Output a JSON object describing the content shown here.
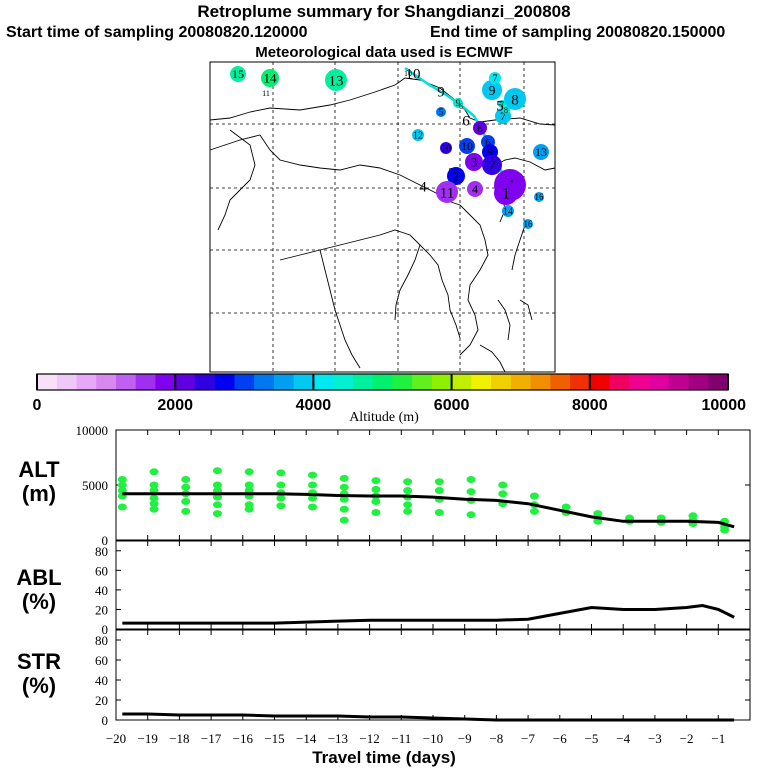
{
  "header": {
    "title": "Retroplume summary for Shangdianzi_200808",
    "start": "Start time of sampling 20080820.120000",
    "end": "End time of sampling 20080820.150000",
    "met": "Meteorological data used is ECMWF"
  },
  "colorbar": {
    "ticks": [
      "0",
      "2000",
      "4000",
      "6000",
      "8000",
      "10000"
    ],
    "label": "Altitude (m)",
    "colors": [
      "#f8e0f8",
      "#f0c8f8",
      "#e8a8f8",
      "#d888f0",
      "#c060f0",
      "#a030f0",
      "#8000f0",
      "#6000e0",
      "#3000e0",
      "#0000f0",
      "#0040f0",
      "#0078f0",
      "#00a0f0",
      "#00c8f0",
      "#00e8f0",
      "#00f0d0",
      "#00f0a0",
      "#00f070",
      "#20f040",
      "#60f020",
      "#90f000",
      "#c0f000",
      "#f0f000",
      "#f0d000",
      "#f0b000",
      "#f09000",
      "#f06000",
      "#f03000",
      "#f00000",
      "#f00060",
      "#f00090",
      "#e000a0",
      "#c00090",
      "#a00080",
      "#800070"
    ]
  },
  "map": {
    "markers": [
      {
        "label": "15",
        "kind": "circle",
        "color": "#00f0a0"
      },
      {
        "label": "14",
        "kind": "circle",
        "color": "#00f070"
      },
      {
        "label": "13",
        "kind": "circle",
        "color": "#00f0a0"
      },
      {
        "label": "11",
        "kind": "circle",
        "color": "#00f070"
      },
      {
        "label": "10",
        "kind": "text",
        "color": "#000000"
      },
      {
        "label": "10",
        "kind": "circle",
        "color": "#00f0a0"
      },
      {
        "label": "9",
        "kind": "text",
        "color": "#000000"
      },
      {
        "label": "9",
        "kind": "circle",
        "color": "#00c8f0"
      },
      {
        "label": "8",
        "kind": "circle",
        "color": "#00c8f0"
      },
      {
        "label": "7",
        "kind": "circle",
        "color": "#00e8f0"
      },
      {
        "label": "7",
        "kind": "circle",
        "color": "#00c8f0"
      },
      {
        "label": "9",
        "kind": "circle",
        "color": "#00e8d0"
      },
      {
        "label": "7",
        "kind": "circle",
        "color": "#00e8d0"
      },
      {
        "label": "8",
        "kind": "circle",
        "color": "#00e8d0"
      },
      {
        "label": "6",
        "kind": "circle",
        "color": "#00e8d0"
      },
      {
        "label": "12",
        "kind": "circle",
        "color": "#00c8f0"
      },
      {
        "label": "5",
        "kind": "circle",
        "color": "#0078f0"
      },
      {
        "label": "6",
        "kind": "text",
        "color": "#000000"
      },
      {
        "label": "5",
        "kind": "text",
        "color": "#000000"
      },
      {
        "label": "6",
        "kind": "circle",
        "color": "#6000e0"
      },
      {
        "label": "6",
        "kind": "circle",
        "color": "#0040f0"
      },
      {
        "label": "13",
        "kind": "circle",
        "color": "#00a0f0"
      },
      {
        "label": "10",
        "kind": "circle",
        "color": "#0040f0"
      },
      {
        "label": "10",
        "kind": "circle",
        "color": "#3000e0"
      },
      {
        "label": "9",
        "kind": "circle",
        "color": "#0000f0"
      },
      {
        "label": "3",
        "kind": "circle",
        "color": "#8000f0"
      },
      {
        "label": "7",
        "kind": "circle",
        "color": "#3000e0"
      },
      {
        "label": "2",
        "kind": "text",
        "color": "#000000"
      },
      {
        "label": "2",
        "kind": "circle",
        "color": "#0000f0"
      },
      {
        "label": "4",
        "kind": "text",
        "color": "#000000"
      },
      {
        "label": "4",
        "kind": "text",
        "color": "#000000"
      },
      {
        "label": "11",
        "kind": "circle",
        "color": "#a030f0"
      },
      {
        "label": "4",
        "kind": "circle",
        "color": "#a030f0"
      },
      {
        "label": "4",
        "kind": "circle",
        "color": "#8000f0"
      },
      {
        "label": "1",
        "kind": "circle",
        "color": "#8000f0"
      },
      {
        "label": "16",
        "kind": "circle",
        "color": "#00a0f0"
      },
      {
        "label": "14",
        "kind": "circle",
        "color": "#00a0f0"
      },
      {
        "label": "16",
        "kind": "circle",
        "color": "#00a0f0"
      }
    ]
  },
  "chart_data": [
    {
      "type": "scatter+line",
      "panel": "ALT (m)",
      "ylabel": "ALT\n(m)",
      "xlabel": "Travel time (days)",
      "ylim": [
        0,
        10000
      ],
      "yticks": [
        "10000",
        "5000",
        "0"
      ],
      "xlim": [
        -20,
        0
      ],
      "xticks": [
        "−20",
        "−19",
        "−18",
        "−17",
        "−16",
        "−15",
        "−14",
        "−13",
        "−12",
        "−11",
        "−10",
        "−9",
        "−8",
        "−7",
        "−6",
        "−5",
        "−4",
        "−3",
        "−2",
        "−1"
      ],
      "median_line": {
        "x": [
          -19.8,
          -19,
          -18,
          -17,
          -16,
          -15,
          -14,
          -13,
          -12,
          -11,
          -10,
          -9,
          -8,
          -7,
          -6,
          -5,
          -4,
          -3,
          -2,
          -1,
          -0.5
        ],
        "y": [
          4200,
          4200,
          4200,
          4200,
          4200,
          4200,
          4150,
          4050,
          4000,
          4000,
          3900,
          3700,
          3600,
          3300,
          2700,
          2100,
          1700,
          1700,
          1700,
          1600,
          1200
        ]
      },
      "scatter": {
        "color": "#20f040",
        "points": [
          [
            -19.8,
            5500
          ],
          [
            -19.8,
            5000
          ],
          [
            -19.8,
            4500
          ],
          [
            -19.8,
            4000
          ],
          [
            -19.8,
            3000
          ],
          [
            -18.8,
            6200
          ],
          [
            -18.8,
            5000
          ],
          [
            -18.8,
            4500
          ],
          [
            -18.8,
            3800
          ],
          [
            -18.8,
            3300
          ],
          [
            -18.8,
            2800
          ],
          [
            -17.8,
            5500
          ],
          [
            -17.8,
            4800
          ],
          [
            -17.8,
            4200
          ],
          [
            -17.8,
            3500
          ],
          [
            -17.8,
            2600
          ],
          [
            -16.8,
            6300
          ],
          [
            -16.8,
            5000
          ],
          [
            -16.8,
            4500
          ],
          [
            -16.8,
            3900
          ],
          [
            -16.8,
            3200
          ],
          [
            -16.8,
            2400
          ],
          [
            -15.8,
            6200
          ],
          [
            -15.8,
            5000
          ],
          [
            -15.8,
            4500
          ],
          [
            -15.8,
            4000
          ],
          [
            -15.8,
            3200
          ],
          [
            -15.8,
            2800
          ],
          [
            -14.8,
            6100
          ],
          [
            -14.8,
            5000
          ],
          [
            -14.8,
            4300
          ],
          [
            -14.8,
            3800
          ],
          [
            -14.8,
            3100
          ],
          [
            -13.8,
            5900
          ],
          [
            -13.8,
            5000
          ],
          [
            -13.8,
            4300
          ],
          [
            -13.8,
            3800
          ],
          [
            -13.8,
            3000
          ],
          [
            -12.8,
            5600
          ],
          [
            -12.8,
            4800
          ],
          [
            -12.8,
            4200
          ],
          [
            -12.8,
            3700
          ],
          [
            -12.8,
            2800
          ],
          [
            -12.8,
            1800
          ],
          [
            -11.8,
            5400
          ],
          [
            -11.8,
            4600
          ],
          [
            -11.8,
            4000
          ],
          [
            -11.8,
            3500
          ],
          [
            -11.8,
            2500
          ],
          [
            -10.8,
            5300
          ],
          [
            -10.8,
            4500
          ],
          [
            -10.8,
            3900
          ],
          [
            -10.8,
            3200
          ],
          [
            -10.8,
            2600
          ],
          [
            -9.8,
            5300
          ],
          [
            -9.8,
            4500
          ],
          [
            -9.8,
            3700
          ],
          [
            -9.8,
            2500
          ],
          [
            -8.8,
            5500
          ],
          [
            -8.8,
            4400
          ],
          [
            -8.8,
            3600
          ],
          [
            -8.8,
            2300
          ],
          [
            -7.8,
            5000
          ],
          [
            -7.8,
            4200
          ],
          [
            -7.8,
            3300
          ],
          [
            -6.8,
            4000
          ],
          [
            -6.8,
            3200
          ],
          [
            -6.8,
            2600
          ],
          [
            -5.8,
            3000
          ],
          [
            -5.8,
            2500
          ],
          [
            -4.8,
            2400
          ],
          [
            -4.8,
            2000
          ],
          [
            -4.8,
            1700
          ],
          [
            -3.8,
            2000
          ],
          [
            -3.8,
            1700
          ],
          [
            -2.8,
            2000
          ],
          [
            -2.8,
            1600
          ],
          [
            -1.8,
            2200
          ],
          [
            -1.8,
            1800
          ],
          [
            -1.8,
            1500
          ],
          [
            -0.8,
            1700
          ],
          [
            -0.8,
            1200
          ],
          [
            -0.8,
            900
          ]
        ]
      }
    },
    {
      "type": "line",
      "panel": "ABL (%)",
      "ylabel": "ABL\n(%)",
      "ylim": [
        0,
        90
      ],
      "yticks": [
        "80",
        "60",
        "40",
        "20",
        "0"
      ],
      "x": [
        -19.8,
        -19,
        -18,
        -17,
        -16,
        -15,
        -14,
        -13,
        -12,
        -11,
        -10,
        -9,
        -8,
        -7,
        -6,
        -5,
        -4,
        -3,
        -2,
        -1.5,
        -1,
        -0.5
      ],
      "y": [
        6,
        6,
        6,
        6,
        6,
        6,
        7,
        8,
        9,
        9,
        9,
        9,
        9,
        10,
        16,
        22,
        20,
        20,
        22,
        24,
        20,
        12
      ]
    },
    {
      "type": "line",
      "panel": "STR (%)",
      "ylabel": "STR\n(%)",
      "ylim": [
        0,
        90
      ],
      "yticks": [
        "80",
        "60",
        "40",
        "20",
        "0"
      ],
      "x": [
        -19.8,
        -19,
        -18,
        -17,
        -16,
        -15,
        -14,
        -13,
        -12,
        -11,
        -10,
        -9,
        -8,
        -7,
        -6,
        -5,
        -4,
        -3,
        -2,
        -1,
        -0.5
      ],
      "y": [
        6,
        6,
        5,
        5,
        5,
        4,
        4,
        4,
        3,
        3,
        2,
        1,
        0,
        0,
        0,
        0,
        0,
        0,
        0,
        0,
        0
      ]
    }
  ]
}
